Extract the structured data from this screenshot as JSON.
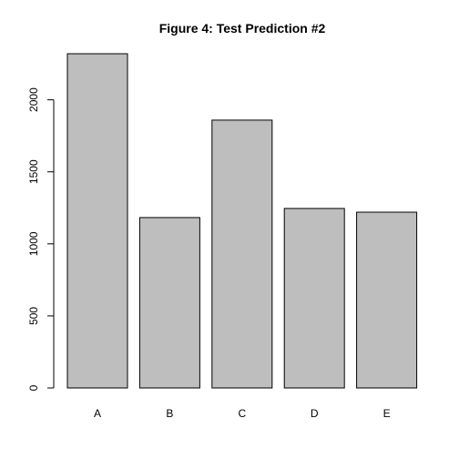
{
  "chart_data": {
    "type": "bar",
    "title": "Figure 4: Test Prediction #2",
    "xlabel": "",
    "ylabel": "",
    "categories": [
      "A",
      "B",
      "C",
      "D",
      "E"
    ],
    "values": [
      2320,
      1183,
      1859,
      1246,
      1220
    ],
    "ylim": [
      0,
      2320
    ],
    "yticks": [
      0,
      500,
      1000,
      1500,
      2000
    ],
    "ytick_labels": [
      "0",
      "500",
      "1000",
      "1500",
      "2000"
    ],
    "bar_fill": "#bebebe",
    "bar_stroke": "#000000",
    "grid": false,
    "legend": "none"
  }
}
